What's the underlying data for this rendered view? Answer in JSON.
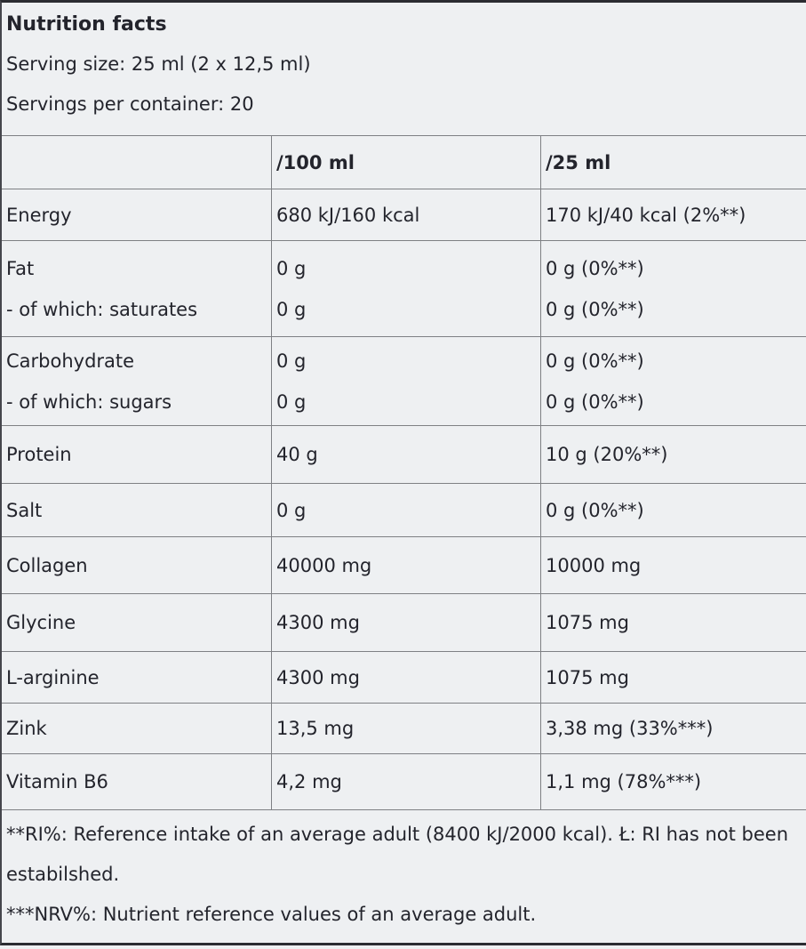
{
  "panel": {
    "title": "Nutrition facts",
    "serving_size": "Serving size: 25 ml (2 x 12,5 ml)",
    "servings_per_container": "Servings per container: 20"
  },
  "table": {
    "columns": [
      "",
      "/100 ml",
      "/25 ml"
    ],
    "rows": [
      {
        "lines": [
          [
            "Energy",
            "680 kJ/160 kcal",
            "170 kJ/40 kcal (2%**)"
          ]
        ]
      },
      {
        "lines": [
          [
            "Fat",
            "0 g",
            "0 g (0%**)"
          ],
          [
            "- of which: saturates",
            "0 g",
            "0 g (0%**)"
          ]
        ]
      },
      {
        "lines": [
          [
            "Carbohydrate",
            "0 g",
            "0 g (0%**)"
          ],
          [
            "- of which: sugars",
            "0 g",
            "0 g (0%**)"
          ]
        ]
      },
      {
        "lines": [
          [
            "Protein",
            "40 g",
            "10 g (20%**)"
          ]
        ]
      },
      {
        "lines": [
          [
            "Salt",
            "0 g",
            "0 g (0%**)"
          ]
        ]
      },
      {
        "lines": [
          [
            "Collagen",
            "40000 mg",
            "10000 mg"
          ]
        ]
      },
      {
        "lines": [
          [
            "Glycine",
            "4300 mg",
            "1075 mg"
          ]
        ]
      },
      {
        "lines": [
          [
            "L-arginine",
            "4300 mg",
            "1075 mg"
          ]
        ]
      },
      {
        "lines": [
          [
            "Zink",
            "13,5 mg",
            "3,38 mg (33%***)"
          ]
        ]
      },
      {
        "lines": [
          [
            "Vitamin B6",
            "4,2 mg",
            "1,1 mg (78%***)"
          ]
        ]
      }
    ]
  },
  "footnotes": [
    "**RI%: Reference intake of an average adult (8400 kJ/2000 kcal). Ł: RI has not been estabilshed.",
    "***NRV%: Nutrient reference values of an average adult."
  ],
  "colors": {
    "background": "#eef0f2",
    "text": "#23242c",
    "grid_line": "#7e8084",
    "outer_border": "#2b2c31"
  }
}
